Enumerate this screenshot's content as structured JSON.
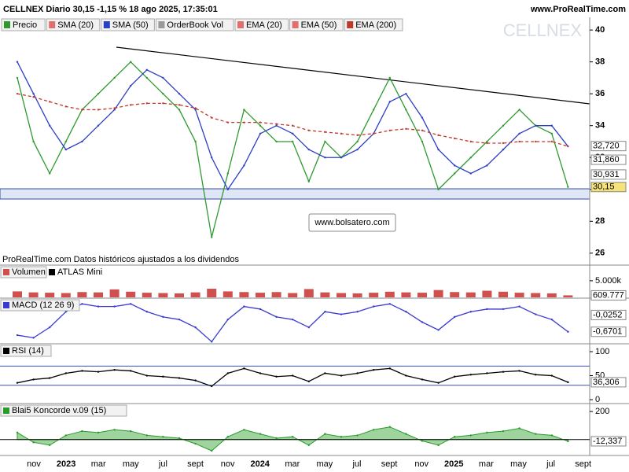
{
  "chart_data": [
    {
      "type": "line",
      "title": "CELLNEX Diario 30,15 -1,15 % 18 ago 2025, 17:35:01",
      "source": "www.ProRealTime.com",
      "watermark": "CELLNEX",
      "note": "ProRealTime.com Datos históricos ajustados a los dividendos",
      "annotation": "www.bolsatero.com",
      "ylim": [
        25.3,
        40.5
      ],
      "yticks": [
        26,
        28,
        30,
        32,
        34,
        36,
        38,
        40
      ],
      "series": [
        {
          "name": "Precio",
          "color": "#2e9a2e",
          "values": [
            37,
            33,
            31,
            33,
            35,
            36,
            37,
            38,
            37,
            36,
            35,
            33,
            27,
            31,
            35,
            34,
            33,
            33,
            30.5,
            33,
            32,
            33,
            35,
            37,
            35,
            33,
            30,
            31,
            32,
            33,
            34,
            35,
            34,
            33.5,
            30.15
          ]
        },
        {
          "name": "SMA (20)",
          "color": "#e07070"
        },
        {
          "name": "SMA (50)",
          "color": "#2b3fc4",
          "values": [
            38,
            36,
            34,
            32.5,
            33,
            34,
            35,
            36.5,
            37.5,
            37,
            36,
            35,
            32,
            30,
            31.5,
            33.5,
            34,
            33.5,
            32.5,
            32,
            32,
            32.5,
            33.5,
            35.5,
            36,
            34.5,
            32.5,
            31.5,
            31,
            31.5,
            32.5,
            33.5,
            34,
            34,
            32.7
          ]
        },
        {
          "name": "OrderBook Vol",
          "color": "#9a9a9a"
        },
        {
          "name": "EMA (20)",
          "color": "#e07070"
        },
        {
          "name": "EMA (50)",
          "color": "#e07070"
        },
        {
          "name": "EMA (200)",
          "color": "#c0392b",
          "values": [
            36,
            35.8,
            35.5,
            35.2,
            35,
            35,
            35.1,
            35.3,
            35.4,
            35.4,
            35.3,
            35.1,
            34.5,
            34.2,
            34.2,
            34.2,
            34.1,
            34,
            33.7,
            33.6,
            33.5,
            33.4,
            33.5,
            33.7,
            33.8,
            33.7,
            33.4,
            33.2,
            33,
            32.9,
            32.9,
            33,
            33,
            33,
            32.7
          ]
        }
      ],
      "price_labels": [
        {
          "value": 32.72,
          "label": "32,720"
        },
        {
          "value": 31.86,
          "label": "31,860"
        },
        {
          "value": 30.931,
          "label": "30,931"
        },
        {
          "value": 30.15,
          "label": "30,15"
        }
      ]
    },
    {
      "type": "bar",
      "title": "Volumen",
      "subtitle": "ATLAS Mini",
      "color": "#d05050",
      "ylim": [
        0,
        9000000
      ],
      "yticks": [
        {
          "value": 5000000,
          "label": "5.000k"
        }
      ],
      "values": [
        1800000,
        1500000,
        1400000,
        1300000,
        1600000,
        1500000,
        2400000,
        1700000,
        1400000,
        1300000,
        1200000,
        1500000,
        2600000,
        1800000,
        1600000,
        1400000,
        1600000,
        1300000,
        2500000,
        1500000,
        1300000,
        1200000,
        1400000,
        1700000,
        1500000,
        1400000,
        2200000,
        1600000,
        1500000,
        2000000,
        1700000,
        1400000,
        1300000,
        1200000,
        609777
      ],
      "last_label": {
        "value": 609777,
        "label": "609.777"
      }
    },
    {
      "type": "line",
      "title": "MACD (12 26 9)",
      "color": "#3a3ad0",
      "ylim": [
        -1.1,
        0.53
      ],
      "values": [
        -0.8,
        -0.9,
        -0.5,
        0.1,
        0.4,
        0.3,
        0.3,
        0.4,
        0.1,
        -0.1,
        -0.2,
        -0.5,
        -1.05,
        -0.2,
        0.3,
        0.2,
        -0.1,
        -0.2,
        -0.5,
        0.1,
        0,
        0.1,
        0.3,
        0.4,
        0.1,
        -0.3,
        -0.6,
        -0.1,
        0.1,
        0.2,
        0.2,
        0.3,
        0,
        -0.2,
        -0.6701
      ],
      "last_labels": [
        {
          "value": -0.0252,
          "label": "-0,0252"
        },
        {
          "value": -0.6701,
          "label": "-0,6701"
        }
      ]
    },
    {
      "type": "line",
      "title": "RSI (14)",
      "color": "#000000",
      "ylim": [
        -6.5,
        111.5
      ],
      "yticks": [
        100,
        50,
        0
      ],
      "levels": [
        70,
        30
      ],
      "values": [
        35,
        42,
        45,
        55,
        60,
        58,
        62,
        60,
        50,
        48,
        45,
        40,
        28,
        55,
        65,
        55,
        48,
        50,
        38,
        55,
        50,
        55,
        62,
        65,
        50,
        42,
        35,
        48,
        52,
        55,
        58,
        60,
        52,
        50,
        36.306
      ],
      "last_labels": [
        {
          "value": 36.306,
          "label": "36,306"
        }
      ]
    },
    {
      "type": "area",
      "title": "Blai5 Koncorde v.09 (15)",
      "color": "#2a9a2a",
      "ylim": [
        -108,
        240
      ],
      "yticks": [
        200
      ],
      "values": [
        50,
        -20,
        -40,
        30,
        60,
        50,
        70,
        60,
        30,
        20,
        10,
        -30,
        -80,
        20,
        70,
        40,
        10,
        20,
        -40,
        40,
        20,
        30,
        70,
        90,
        40,
        -10,
        -40,
        20,
        30,
        50,
        60,
        80,
        40,
        30,
        -12.337
      ],
      "last_labels": [
        {
          "value": -12.337,
          "label": "-12,337"
        }
      ],
      "x_labels": [
        "nov",
        "2023",
        "mar",
        "may",
        "jul",
        "sept",
        "nov",
        "2024",
        "mar",
        "may",
        "jul",
        "sept",
        "nov",
        "2025",
        "mar",
        "may",
        "jul",
        "sept"
      ]
    }
  ]
}
